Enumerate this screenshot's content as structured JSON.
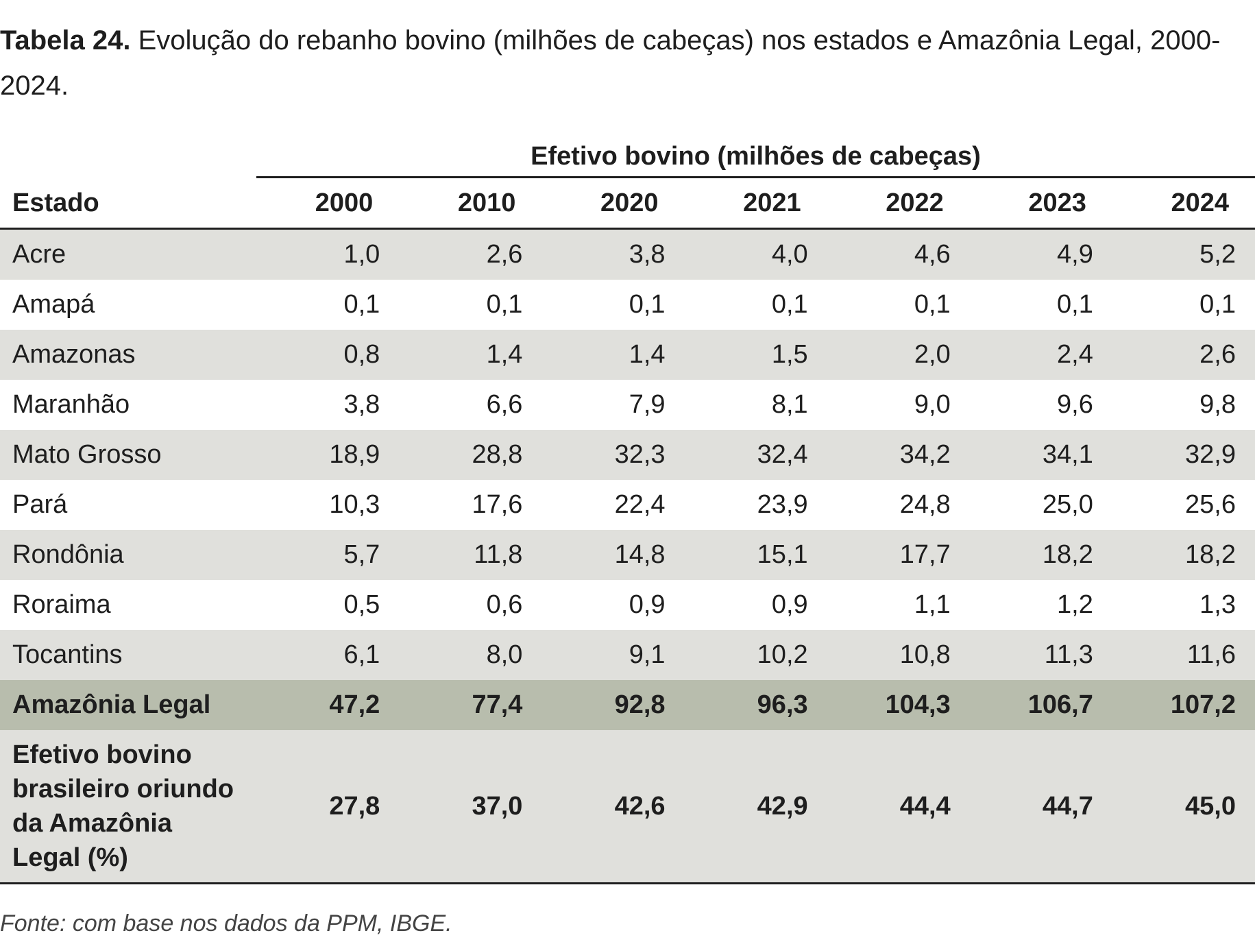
{
  "caption": {
    "label": "Tabela 24.",
    "text": "Evolução do rebanho bovino (milhões de cabeças) nos  estados e Amazônia Legal, 2000-2024."
  },
  "table": {
    "group_header": "Efetivo bovino (milhões de cabeças)",
    "state_header": "Estado",
    "years": [
      "2000",
      "2010",
      "2020",
      "2021",
      "2022",
      "2023",
      "2024"
    ],
    "rows": [
      {
        "name": "Acre",
        "values": [
          "1,0",
          "2,6",
          "3,8",
          "4,0",
          "4,6",
          "4,9",
          "5,2"
        ]
      },
      {
        "name": "Amapá",
        "values": [
          "0,1",
          "0,1",
          "0,1",
          "0,1",
          "0,1",
          "0,1",
          "0,1"
        ]
      },
      {
        "name": "Amazonas",
        "values": [
          "0,8",
          "1,4",
          "1,4",
          "1,5",
          "2,0",
          "2,4",
          "2,6"
        ]
      },
      {
        "name": "Maranhão",
        "values": [
          "3,8",
          "6,6",
          "7,9",
          "8,1",
          "9,0",
          "9,6",
          "9,8"
        ]
      },
      {
        "name": "Mato Grosso",
        "values": [
          "18,9",
          "28,8",
          "32,3",
          "32,4",
          "34,2",
          "34,1",
          "32,9"
        ]
      },
      {
        "name": "Pará",
        "values": [
          "10,3",
          "17,6",
          "22,4",
          "23,9",
          "24,8",
          "25,0",
          "25,6"
        ]
      },
      {
        "name": "Rondônia",
        "values": [
          "5,7",
          "11,8",
          "14,8",
          "15,1",
          "17,7",
          "18,2",
          "18,2"
        ]
      },
      {
        "name": "Roraima",
        "values": [
          "0,5",
          "0,6",
          "0,9",
          "0,9",
          "1,1",
          "1,2",
          "1,3"
        ]
      },
      {
        "name": "Tocantins",
        "values": [
          "6,1",
          "8,0",
          "9,1",
          "10,2",
          "10,8",
          "11,3",
          "11,6"
        ]
      }
    ],
    "total": {
      "name": "Amazônia Legal",
      "values": [
        "47,2",
        "77,4",
        "92,8",
        "96,3",
        "104,3",
        "106,7",
        "107,2"
      ]
    },
    "share": {
      "name_lines": [
        "Efetivo bovino",
        "brasileiro oriundo",
        "da Amazônia",
        "Legal (%)"
      ],
      "values": [
        "27,8",
        "37,0",
        "42,6",
        "42,9",
        "44,4",
        "44,7",
        "45,0"
      ]
    }
  },
  "source": "Fonte: com base nos dados da PPM, IBGE.",
  "colors": {
    "row_shade": "#e0e0dc",
    "total_row": "#b8bdad",
    "text": "#1e1e1e"
  }
}
